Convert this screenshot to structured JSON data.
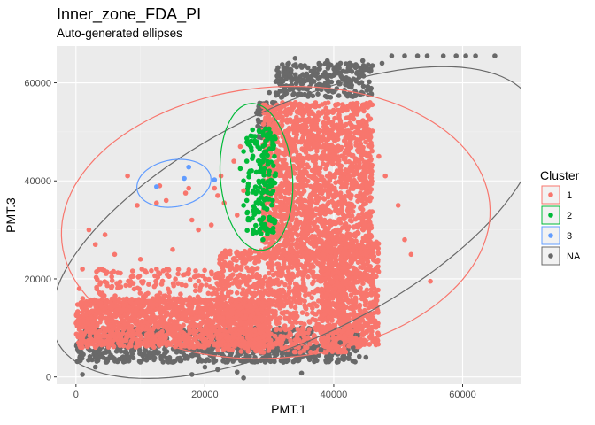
{
  "chart_data": {
    "type": "scatter",
    "title": "Inner_zone_FDA_PI",
    "subtitle": "Auto-generated ellipses",
    "xlabel": "PMT.1",
    "ylabel": "PMT.3",
    "xlim": [
      -3000,
      69000
    ],
    "ylim": [
      -1500,
      67500
    ],
    "x_ticks": [
      0,
      20000,
      40000,
      60000
    ],
    "y_ticks": [
      0,
      20000,
      40000,
      60000
    ],
    "grid": true,
    "legend": {
      "title": "Cluster",
      "placement": "right",
      "entries": [
        "1",
        "2",
        "3",
        "NA"
      ]
    },
    "colors": {
      "1": "#F8766D",
      "2": "#00BA38",
      "3": "#619CFF",
      "NA": "#696969",
      "panel": "#EBEBEB",
      "grid_major": "#FFFFFF",
      "grid_minor": "#F5F5F5"
    },
    "ellipses": [
      {
        "cluster": "NA",
        "cx": 34000,
        "cy": 31500,
        "rx": 44500,
        "ry": 21500,
        "angle_deg": 37
      },
      {
        "cluster": "1",
        "cx": 31000,
        "cy": 31500,
        "rx": 33500,
        "ry": 27500,
        "angle_deg": 12
      },
      {
        "cluster": "2",
        "cx": 28000,
        "cy": 40800,
        "rx": 5600,
        "ry": 15000,
        "angle_deg": 3
      },
      {
        "cluster": "3",
        "cx": 15200,
        "cy": 39500,
        "rx": 5900,
        "ry": 4700,
        "angle_deg": 22
      }
    ],
    "series": [
      {
        "name": "1",
        "points": [
          [
            8000,
            41000
          ],
          [
            9500,
            35000
          ],
          [
            12500,
            35500
          ],
          [
            13000,
            39000
          ],
          [
            14000,
            36000
          ],
          [
            17000,
            37500
          ],
          [
            17500,
            38500
          ],
          [
            22000,
            37000
          ],
          [
            21500,
            38500
          ],
          [
            22500,
            41000
          ],
          [
            23000,
            35500
          ],
          [
            25000,
            33000
          ],
          [
            21000,
            31000
          ],
          [
            19000,
            30000
          ],
          [
            18000,
            32000
          ],
          [
            26000,
            38000
          ],
          [
            24500,
            44000
          ],
          [
            25500,
            47000
          ],
          [
            50000,
            35000
          ],
          [
            48000,
            41000
          ],
          [
            47000,
            45000
          ],
          [
            45000,
            40000
          ],
          [
            51000,
            28000
          ],
          [
            55000,
            19500
          ],
          [
            52000,
            25000
          ],
          [
            2000,
            30000
          ],
          [
            3000,
            27000
          ],
          [
            4500,
            29000
          ],
          [
            1000,
            22000
          ],
          [
            500,
            18000
          ],
          [
            6000,
            25000
          ],
          [
            10000,
            24000
          ],
          [
            12500,
            22000
          ],
          [
            15000,
            26000
          ],
          [
            35000,
            43000
          ]
        ]
      },
      {
        "name": "2",
        "points": [
          [
            26000,
            46000
          ],
          [
            26500,
            44000
          ],
          [
            27000,
            42000
          ],
          [
            26000,
            40000
          ],
          [
            27500,
            38000
          ],
          [
            26500,
            36000
          ],
          [
            28000,
            34000
          ],
          [
            27000,
            32000
          ],
          [
            28500,
            30000
          ],
          [
            29000,
            28000
          ],
          [
            28000,
            48000
          ],
          [
            29000,
            50000
          ],
          [
            29500,
            46000
          ],
          [
            30000,
            42000
          ],
          [
            29500,
            38000
          ],
          [
            30500,
            36000
          ],
          [
            30000,
            32000
          ],
          [
            29000,
            40000
          ],
          [
            28500,
            44000
          ],
          [
            30500,
            40000
          ],
          [
            25500,
            42500
          ],
          [
            26000,
            35000
          ],
          [
            27500,
            30000
          ],
          [
            28200,
            47000
          ],
          [
            29200,
            34500
          ]
        ]
      },
      {
        "name": "3",
        "points": [
          [
            12500,
            38800
          ],
          [
            16800,
            40500
          ],
          [
            17500,
            42800
          ],
          [
            21500,
            40200
          ]
        ]
      },
      {
        "name": "NA",
        "points": [
          [
            33000,
            64000
          ],
          [
            34000,
            65000
          ],
          [
            35500,
            63500
          ],
          [
            37000,
            62500
          ],
          [
            39000,
            64500
          ],
          [
            40500,
            63000
          ],
          [
            41000,
            62000
          ],
          [
            42500,
            64000
          ],
          [
            44500,
            64500
          ],
          [
            46000,
            63500
          ],
          [
            47500,
            64000
          ],
          [
            49000,
            65500
          ],
          [
            51000,
            65500
          ],
          [
            53000,
            65500
          ],
          [
            54500,
            65500
          ],
          [
            57000,
            65500
          ],
          [
            59000,
            65500
          ],
          [
            60500,
            65500
          ],
          [
            62000,
            65500
          ],
          [
            65000,
            65500
          ],
          [
            30000,
            58000
          ],
          [
            31500,
            60000
          ],
          [
            32500,
            58500
          ],
          [
            30500,
            56000
          ],
          [
            12000,
            5000
          ],
          [
            15000,
            3000
          ],
          [
            20000,
            2000
          ],
          [
            25000,
            1000
          ],
          [
            18000,
            500
          ],
          [
            30000,
            4000
          ],
          [
            34000,
            3500
          ],
          [
            38000,
            5500
          ],
          [
            40500,
            3000
          ],
          [
            43000,
            6000
          ],
          [
            45000,
            4000
          ],
          [
            3000,
            2000
          ],
          [
            1000,
            500
          ],
          [
            26000,
            -200
          ],
          [
            22000,
            1500
          ],
          [
            35000,
            800
          ],
          [
            41000,
            7000
          ]
        ]
      }
    ],
    "dense_regions": [
      {
        "cluster": "NA",
        "x_range": [
          0,
          44000
        ],
        "y_range": [
          3000,
          10000
        ],
        "count": 900
      },
      {
        "cluster": "NA",
        "x_range": [
          31000,
          46000
        ],
        "y_range": [
          57000,
          64000
        ],
        "count": 250
      },
      {
        "cluster": "NA",
        "x_range": [
          28000,
          31000
        ],
        "y_range": [
          48000,
          56000
        ],
        "count": 60
      },
      {
        "cluster": "1",
        "x_range": [
          0,
          30000
        ],
        "y_range": [
          6000,
          16000
        ],
        "count": 1300
      },
      {
        "cluster": "1",
        "x_range": [
          3000,
          24000
        ],
        "y_range": [
          12000,
          22000
        ],
        "count": 250
      },
      {
        "cluster": "1",
        "x_range": [
          29000,
          46000
        ],
        "y_range": [
          24000,
          56000
        ],
        "count": 1800
      },
      {
        "cluster": "1",
        "x_range": [
          22000,
          42000
        ],
        "y_range": [
          5000,
          26000
        ],
        "count": 1000
      },
      {
        "cluster": "1",
        "x_range": [
          38000,
          47000
        ],
        "y_range": [
          6000,
          28000
        ],
        "count": 700
      },
      {
        "cluster": "2",
        "x_range": [
          26500,
          31000
        ],
        "y_range": [
          29000,
          51000
        ],
        "count": 160
      }
    ]
  }
}
